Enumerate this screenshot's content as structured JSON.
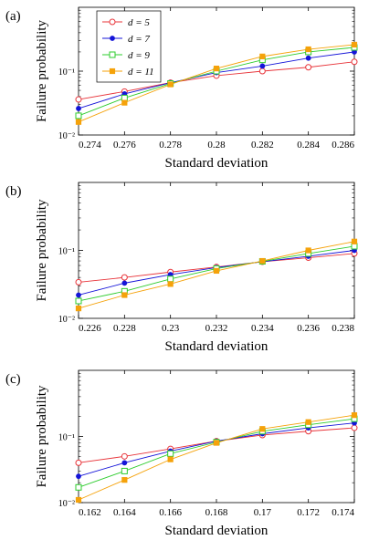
{
  "chart_data": [
    {
      "panel_label": "(a)",
      "type": "line",
      "xlabel": "Standard deviation",
      "ylabel": "Failure probability",
      "x": [
        0.274,
        0.276,
        0.278,
        0.28,
        0.282,
        0.284,
        0.286
      ],
      "x_tick_labels": [
        "0.274",
        "0.276",
        "0.278",
        "0.28",
        "0.282",
        "0.284",
        "0.286"
      ],
      "xlim": [
        0.274,
        0.286
      ],
      "yscale": "log",
      "ylim": [
        0.01,
        1
      ],
      "y_tick_labels": [
        "10⁻²",
        "10⁻¹"
      ],
      "y_tick_values": [
        0.01,
        0.1
      ],
      "legend": "top-left",
      "series": [
        {
          "name": "d = 5",
          "color": "#e8343a",
          "marker": "open-circle",
          "values": [
            0.036,
            0.048,
            0.066,
            0.085,
            0.1,
            0.115,
            0.14
          ]
        },
        {
          "name": "d = 7",
          "color": "#1414d8",
          "marker": "filled-circle",
          "values": [
            0.026,
            0.044,
            0.066,
            0.095,
            0.12,
            0.16,
            0.2
          ]
        },
        {
          "name": "d = 9",
          "color": "#2ecc2e",
          "marker": "open-square",
          "values": [
            0.02,
            0.038,
            0.064,
            0.1,
            0.15,
            0.2,
            0.235
          ]
        },
        {
          "name": "d = 11",
          "color": "#f5a20a",
          "marker": "filled-square",
          "values": [
            0.016,
            0.032,
            0.062,
            0.11,
            0.17,
            0.22,
            0.26
          ]
        }
      ]
    },
    {
      "panel_label": "(b)",
      "type": "line",
      "xlabel": "Standard deviation",
      "ylabel": "Failure probability",
      "x": [
        0.226,
        0.228,
        0.23,
        0.232,
        0.234,
        0.236,
        0.238
      ],
      "x_tick_labels": [
        "0.226",
        "0.228",
        "0.23",
        "0.232",
        "0.234",
        "0.236",
        "0.238"
      ],
      "xlim": [
        0.226,
        0.238
      ],
      "yscale": "log",
      "ylim": [
        0.01,
        1
      ],
      "y_tick_labels": [
        "10⁻²",
        "10⁻¹"
      ],
      "y_tick_values": [
        0.01,
        0.1
      ],
      "series": [
        {
          "name": "d = 5",
          "color": "#e8343a",
          "marker": "open-circle",
          "values": [
            0.034,
            0.04,
            0.048,
            0.057,
            0.068,
            0.078,
            0.09
          ]
        },
        {
          "name": "d = 7",
          "color": "#1414d8",
          "marker": "filled-circle",
          "values": [
            0.022,
            0.033,
            0.044,
            0.056,
            0.068,
            0.082,
            0.1
          ]
        },
        {
          "name": "d = 9",
          "color": "#2ecc2e",
          "marker": "open-square",
          "values": [
            0.018,
            0.025,
            0.038,
            0.054,
            0.069,
            0.09,
            0.115
          ]
        },
        {
          "name": "d = 11",
          "color": "#f5a20a",
          "marker": "filled-square",
          "values": [
            0.014,
            0.022,
            0.032,
            0.05,
            0.07,
            0.1,
            0.135
          ]
        }
      ]
    },
    {
      "panel_label": "(c)",
      "type": "line",
      "xlabel": "Standard deviation",
      "ylabel": "Failure probability",
      "x": [
        0.162,
        0.164,
        0.166,
        0.168,
        0.17,
        0.172,
        0.174
      ],
      "x_tick_labels": [
        "0.162",
        "0.164",
        "0.166",
        "0.168",
        "0.17",
        "0.172",
        "0.174"
      ],
      "xlim": [
        0.162,
        0.174
      ],
      "yscale": "log",
      "ylim": [
        0.01,
        1
      ],
      "y_tick_labels": [
        "10⁻²",
        "10⁻¹"
      ],
      "y_tick_values": [
        0.01,
        0.1
      ],
      "series": [
        {
          "name": "d = 5",
          "color": "#e8343a",
          "marker": "open-circle",
          "values": [
            0.04,
            0.05,
            0.065,
            0.085,
            0.105,
            0.12,
            0.135
          ]
        },
        {
          "name": "d = 7",
          "color": "#1414d8",
          "marker": "filled-circle",
          "values": [
            0.025,
            0.04,
            0.06,
            0.085,
            0.11,
            0.135,
            0.16
          ]
        },
        {
          "name": "d = 9",
          "color": "#2ecc2e",
          "marker": "open-square",
          "values": [
            0.017,
            0.03,
            0.055,
            0.082,
            0.12,
            0.15,
            0.185
          ]
        },
        {
          "name": "d = 11",
          "color": "#f5a20a",
          "marker": "filled-square",
          "values": [
            0.011,
            0.022,
            0.045,
            0.08,
            0.13,
            0.165,
            0.21
          ]
        }
      ]
    }
  ]
}
